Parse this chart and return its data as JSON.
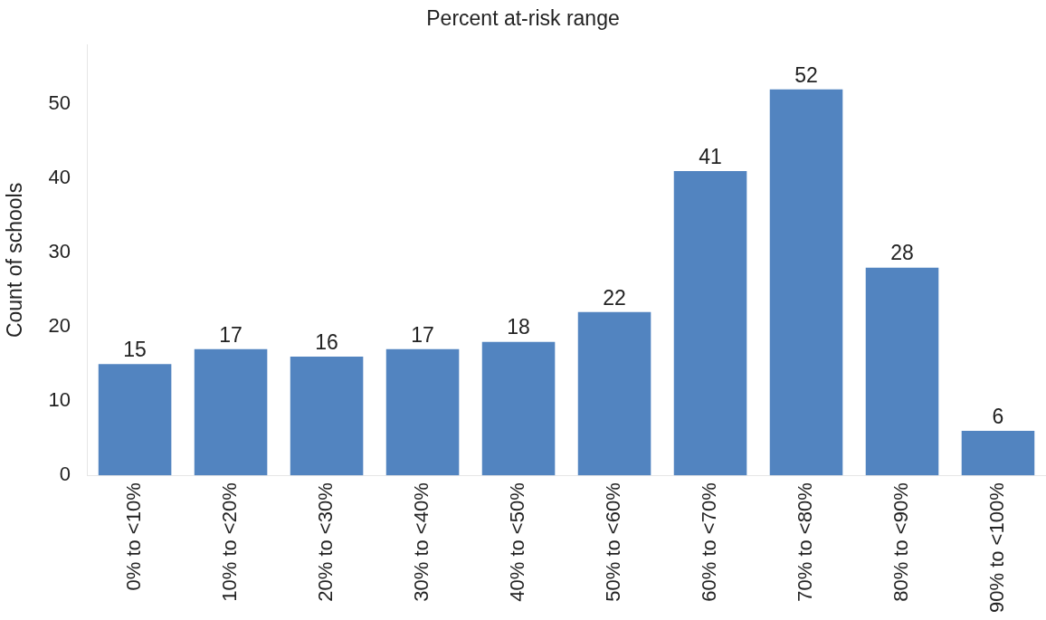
{
  "chart_data": {
    "type": "bar",
    "title": "Percent at-risk range",
    "ylabel": "Count of schools",
    "categories": [
      "0% to <10%",
      "10% to <20%",
      "20% to <30%",
      "30% to <40%",
      "40% to <50%",
      "50% to <60%",
      "60% to <70%",
      "70% to <80%",
      "80% to <90%",
      "90% to <100%"
    ],
    "values": [
      15,
      17,
      16,
      17,
      18,
      22,
      41,
      52,
      28,
      6
    ],
    "color": "#5284c0",
    "ylim": [
      0,
      58
    ],
    "yticks": [
      0,
      10,
      20,
      30,
      40,
      50
    ],
    "grid": false,
    "legend": false,
    "data_labels": true
  }
}
